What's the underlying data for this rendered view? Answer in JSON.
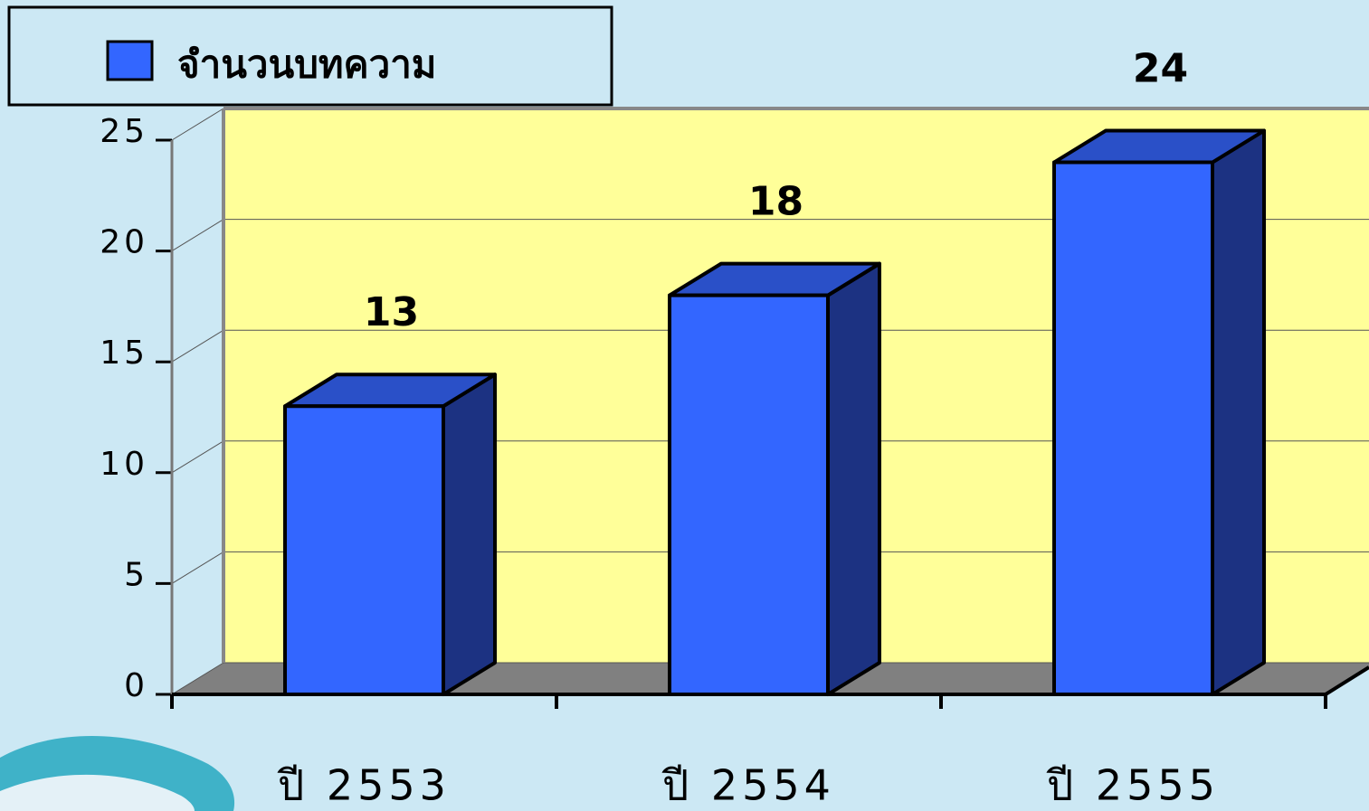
{
  "chart_data": {
    "type": "bar",
    "categories": [
      "ปี 2553",
      "ปี 2554",
      "ปี 2555"
    ],
    "series": [
      {
        "name": "จำนวนบทความ",
        "color": "#3366ff",
        "values": [
          13,
          18,
          24
        ]
      }
    ],
    "ylim": [
      0,
      25
    ],
    "yticks": [
      0,
      5,
      10,
      15,
      20,
      25
    ],
    "grid": true
  }
}
